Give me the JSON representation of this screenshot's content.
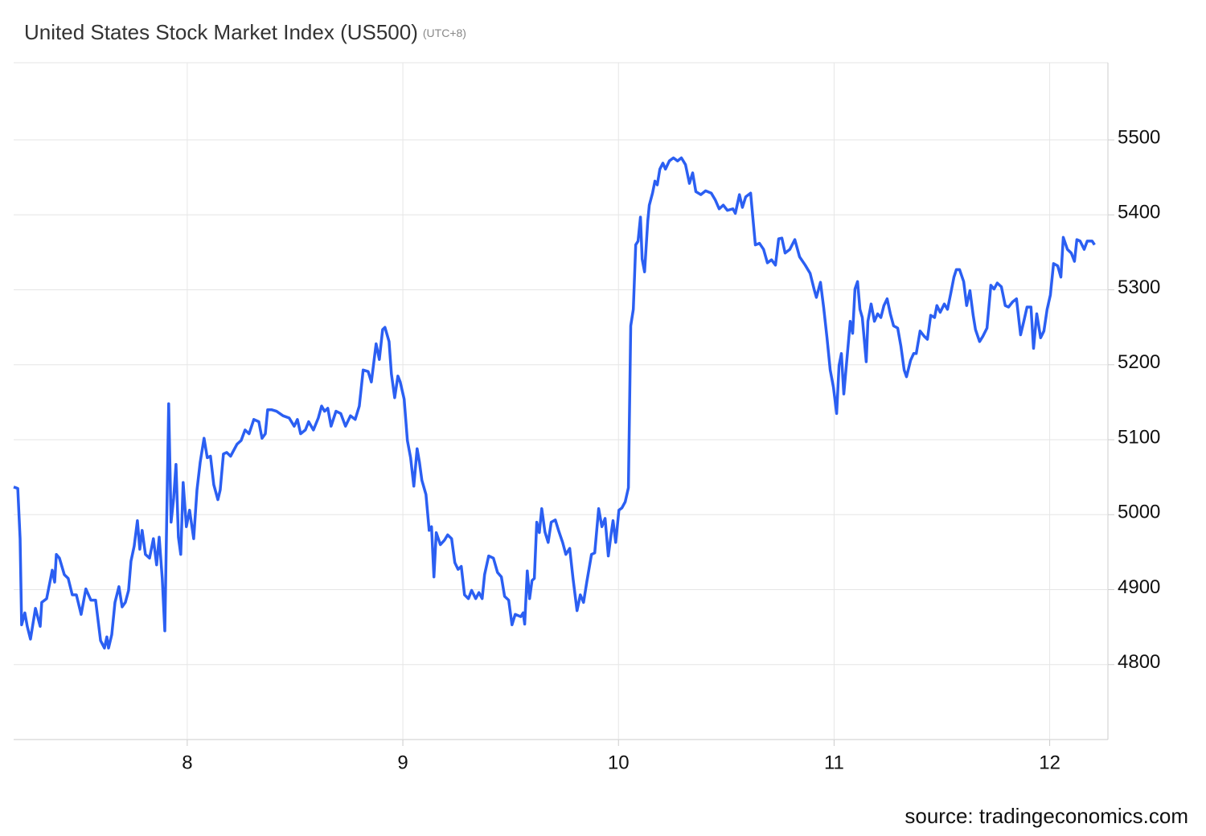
{
  "chart_data": {
    "type": "line",
    "title": "United States Stock Market Index (US500)",
    "subtitle": "(UTC+8)",
    "source": "source: tradingeconomics.com",
    "color": "#2b5ff2",
    "grid": true,
    "xlim": [
      7.195,
      12.27
    ],
    "ylim": [
      4700,
      5603
    ],
    "xticks": [
      8,
      9,
      10,
      11,
      12
    ],
    "yticks": [
      4800,
      4900,
      5000,
      5100,
      5200,
      5300,
      5400,
      5500
    ],
    "x": [
      7.195,
      7.214,
      7.225,
      7.232,
      7.247,
      7.258,
      7.273,
      7.296,
      7.318,
      7.325,
      7.348,
      7.374,
      7.385,
      7.393,
      7.407,
      7.43,
      7.448,
      7.467,
      7.486,
      7.508,
      7.53,
      7.553,
      7.575,
      7.598,
      7.616,
      7.627,
      7.635,
      7.65,
      7.665,
      7.683,
      7.698,
      7.713,
      7.728,
      7.739,
      7.754,
      7.769,
      7.78,
      7.791,
      7.806,
      7.825,
      7.843,
      7.858,
      7.87,
      7.884,
      7.896,
      7.914,
      7.925,
      7.937,
      7.948,
      7.959,
      7.97,
      7.981,
      7.996,
      8.011,
      8.03,
      8.045,
      8.06,
      8.078,
      8.093,
      8.108,
      8.123,
      8.142,
      8.153,
      8.168,
      8.183,
      8.201,
      8.231,
      8.25,
      8.268,
      8.287,
      8.309,
      8.332,
      8.347,
      8.362,
      8.373,
      8.391,
      8.414,
      8.444,
      8.473,
      8.496,
      8.511,
      8.526,
      8.548,
      8.563,
      8.585,
      8.608,
      8.623,
      8.637,
      8.652,
      8.667,
      8.69,
      8.712,
      8.734,
      8.757,
      8.779,
      8.798,
      8.816,
      8.839,
      8.854,
      8.876,
      8.891,
      8.906,
      8.917,
      8.936,
      8.947,
      8.962,
      8.977,
      8.988,
      9.006,
      9.021,
      9.036,
      9.051,
      9.066,
      9.077,
      9.088,
      9.107,
      9.122,
      9.133,
      9.144,
      9.155,
      9.174,
      9.193,
      9.208,
      9.226,
      9.241,
      9.256,
      9.271,
      9.286,
      9.304,
      9.319,
      9.338,
      9.353,
      9.368,
      9.379,
      9.398,
      9.42,
      9.439,
      9.457,
      9.472,
      9.491,
      9.506,
      9.521,
      9.547,
      9.558,
      9.565,
      9.577,
      9.588,
      9.599,
      9.61,
      9.621,
      9.633,
      9.644,
      9.659,
      9.674,
      9.688,
      9.707,
      9.722,
      9.741,
      9.756,
      9.774,
      9.789,
      9.808,
      9.823,
      9.838,
      9.853,
      9.875,
      9.89,
      9.908,
      9.923,
      9.938,
      9.953,
      9.968,
      9.975,
      9.987,
      10.002,
      10.016,
      10.031,
      10.046,
      10.057,
      10.069,
      10.08,
      10.091,
      10.102,
      10.11,
      10.121,
      10.136,
      10.143,
      10.158,
      10.169,
      10.18,
      10.192,
      10.206,
      10.218,
      10.236,
      10.255,
      10.274,
      10.292,
      10.311,
      10.329,
      10.344,
      10.359,
      10.382,
      10.404,
      10.43,
      10.449,
      10.467,
      10.486,
      10.505,
      10.531,
      10.542,
      10.561,
      10.575,
      10.59,
      10.613,
      10.635,
      10.654,
      10.673,
      10.691,
      10.71,
      10.728,
      10.743,
      10.758,
      10.773,
      10.795,
      10.818,
      10.84,
      10.866,
      10.889,
      10.907,
      10.918,
      10.937,
      10.952,
      10.967,
      10.982,
      10.997,
      11.012,
      11.023,
      11.034,
      11.045,
      11.06,
      11.075,
      11.086,
      11.097,
      11.109,
      11.12,
      11.131,
      11.149,
      11.157,
      11.172,
      11.187,
      11.202,
      11.217,
      11.231,
      11.246,
      11.261,
      11.276,
      11.295,
      11.31,
      11.325,
      11.336,
      11.355,
      11.369,
      11.381,
      11.399,
      11.418,
      11.433,
      11.448,
      11.466,
      11.477,
      11.492,
      11.511,
      11.526,
      11.541,
      11.556,
      11.567,
      11.582,
      11.601,
      11.615,
      11.63,
      11.645,
      11.656,
      11.675,
      11.69,
      11.709,
      11.727,
      11.742,
      11.757,
      11.776,
      11.794,
      11.809,
      11.828,
      11.846,
      11.865,
      11.88,
      11.895,
      11.913,
      11.925,
      11.94,
      11.958,
      11.973,
      11.988,
      12.003,
      12.018,
      12.037,
      12.052,
      12.063,
      12.082,
      12.1,
      12.115,
      12.126,
      12.141,
      12.16,
      12.174,
      12.197,
      12.208
    ],
    "values": [
      5037,
      5035,
      4968,
      4853,
      4869,
      4851,
      4834,
      4875,
      4851,
      4883,
      4888,
      4926,
      4910,
      4947,
      4942,
      4920,
      4915,
      4893,
      4893,
      4867,
      4901,
      4886,
      4886,
      4832,
      4822,
      4837,
      4822,
      4840,
      4883,
      4904,
      4877,
      4883,
      4899,
      4938,
      4958,
      4992,
      4954,
      4979,
      4947,
      4942,
      4968,
      4933,
      4970,
      4915,
      4845,
      5148,
      4990,
      5022,
      5067,
      4970,
      4947,
      5043,
      4984,
      5006,
      4968,
      5033,
      5070,
      5102,
      5076,
      5078,
      5040,
      5020,
      5033,
      5081,
      5083,
      5078,
      5094,
      5099,
      5113,
      5108,
      5127,
      5124,
      5102,
      5108,
      5140,
      5140,
      5138,
      5132,
      5129,
      5118,
      5127,
      5108,
      5113,
      5124,
      5113,
      5129,
      5145,
      5138,
      5142,
      5118,
      5138,
      5135,
      5118,
      5132,
      5127,
      5145,
      5193,
      5191,
      5177,
      5228,
      5207,
      5247,
      5250,
      5231,
      5188,
      5156,
      5185,
      5177,
      5154,
      5099,
      5076,
      5038,
      5088,
      5070,
      5046,
      5027,
      4979,
      4984,
      4917,
      4976,
      4960,
      4966,
      4973,
      4968,
      4936,
      4927,
      4931,
      4893,
      4888,
      4899,
      4888,
      4896,
      4888,
      4920,
      4945,
      4942,
      4923,
      4917,
      4891,
      4886,
      4853,
      4867,
      4864,
      4869,
      4854,
      4925,
      4888,
      4912,
      4915,
      4990,
      4976,
      5008,
      4977,
      4963,
      4990,
      4993,
      4979,
      4963,
      4947,
      4955,
      4915,
      4872,
      4893,
      4883,
      4910,
      4947,
      4949,
      5008,
      4984,
      4995,
      4945,
      4979,
      4992,
      4963,
      5006,
      5009,
      5017,
      5036,
      5252,
      5274,
      5360,
      5365,
      5397,
      5341,
      5324,
      5392,
      5413,
      5429,
      5445,
      5440,
      5461,
      5469,
      5461,
      5472,
      5476,
      5472,
      5476,
      5467,
      5442,
      5456,
      5431,
      5427,
      5432,
      5429,
      5420,
      5408,
      5413,
      5406,
      5408,
      5402,
      5427,
      5410,
      5424,
      5429,
      5360,
      5362,
      5354,
      5336,
      5340,
      5333,
      5368,
      5369,
      5349,
      5354,
      5367,
      5344,
      5333,
      5322,
      5301,
      5290,
      5310,
      5276,
      5236,
      5193,
      5170,
      5135,
      5199,
      5215,
      5161,
      5209,
      5258,
      5242,
      5301,
      5311,
      5274,
      5263,
      5204,
      5258,
      5281,
      5258,
      5268,
      5263,
      5279,
      5288,
      5268,
      5252,
      5249,
      5225,
      5193,
      5184,
      5206,
      5215,
      5215,
      5245,
      5238,
      5234,
      5266,
      5263,
      5279,
      5270,
      5281,
      5274,
      5295,
      5317,
      5327,
      5327,
      5311,
      5279,
      5299,
      5266,
      5247,
      5231,
      5238,
      5249,
      5306,
      5301,
      5309,
      5304,
      5279,
      5277,
      5284,
      5288,
      5240,
      5258,
      5277,
      5277,
      5222,
      5268,
      5236,
      5245,
      5274,
      5293,
      5335,
      5332,
      5317,
      5370,
      5354,
      5349,
      5338,
      5367,
      5365,
      5354,
      5365,
      5365,
      5360
    ]
  }
}
